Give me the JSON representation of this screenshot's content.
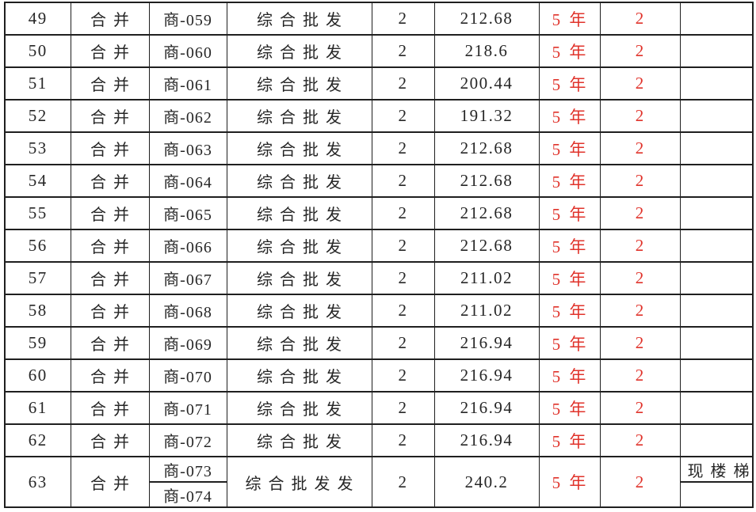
{
  "colors": {
    "grid": "#1f1f1f",
    "text": "#262626",
    "highlight_red": "#e0332b",
    "background": "#ffffff"
  },
  "table": {
    "column_keys": [
      "no",
      "merge",
      "unit",
      "use",
      "floors",
      "area",
      "term",
      "count",
      "note"
    ],
    "rows": [
      {
        "no": "49",
        "merge": "合并",
        "unit": "商-059",
        "use": "综合批发",
        "floors": "2",
        "area": "212.68",
        "term": "5 年",
        "count": "2",
        "note": ""
      },
      {
        "no": "50",
        "merge": "合并",
        "unit": "商-060",
        "use": "综合批发",
        "floors": "2",
        "area": "218.6",
        "term": "5 年",
        "count": "2",
        "note": ""
      },
      {
        "no": "51",
        "merge": "合并",
        "unit": "商-061",
        "use": "综合批发",
        "floors": "2",
        "area": "200.44",
        "term": "5 年",
        "count": "2",
        "note": ""
      },
      {
        "no": "52",
        "merge": "合并",
        "unit": "商-062",
        "use": "综合批发",
        "floors": "2",
        "area": "191.32",
        "term": "5 年",
        "count": "2",
        "note": ""
      },
      {
        "no": "53",
        "merge": "合并",
        "unit": "商-063",
        "use": "综合批发",
        "floors": "2",
        "area": "212.68",
        "term": "5 年",
        "count": "2",
        "note": ""
      },
      {
        "no": "54",
        "merge": "合并",
        "unit": "商-064",
        "use": "综合批发",
        "floors": "2",
        "area": "212.68",
        "term": "5 年",
        "count": "2",
        "note": ""
      },
      {
        "no": "55",
        "merge": "合并",
        "unit": "商-065",
        "use": "综合批发",
        "floors": "2",
        "area": "212.68",
        "term": "5 年",
        "count": "2",
        "note": ""
      },
      {
        "no": "56",
        "merge": "合并",
        "unit": "商-066",
        "use": "综合批发",
        "floors": "2",
        "area": "212.68",
        "term": "5 年",
        "count": "2",
        "note": ""
      },
      {
        "no": "57",
        "merge": "合并",
        "unit": "商-067",
        "use": "综合批发",
        "floors": "2",
        "area": "211.02",
        "term": "5 年",
        "count": "2",
        "note": ""
      },
      {
        "no": "58",
        "merge": "合并",
        "unit": "商-068",
        "use": "综合批发",
        "floors": "2",
        "area": "211.02",
        "term": "5 年",
        "count": "2",
        "note": ""
      },
      {
        "no": "59",
        "merge": "合并",
        "unit": "商-069",
        "use": "综合批发",
        "floors": "2",
        "area": "216.94",
        "term": "5 年",
        "count": "2",
        "note": ""
      },
      {
        "no": "60",
        "merge": "合并",
        "unit": "商-070",
        "use": "综合批发",
        "floors": "2",
        "area": "216.94",
        "term": "5 年",
        "count": "2",
        "note": ""
      },
      {
        "no": "61",
        "merge": "合并",
        "unit": "商-071",
        "use": "综合批发",
        "floors": "2",
        "area": "216.94",
        "term": "5 年",
        "count": "2",
        "note": ""
      },
      {
        "no": "62",
        "merge": "合并",
        "unit": "商-072",
        "use": "综合批发",
        "floors": "2",
        "area": "216.94",
        "term": "5 年",
        "count": "2",
        "note": ""
      }
    ],
    "merged_row": {
      "no": "63",
      "merge": "合并",
      "units": [
        "商-073",
        "商-074"
      ],
      "use": "综合批发发",
      "floors": "2",
      "area": "240.2",
      "term": "5 年",
      "count": "2",
      "notes": [
        "现楼梯",
        ""
      ]
    }
  }
}
